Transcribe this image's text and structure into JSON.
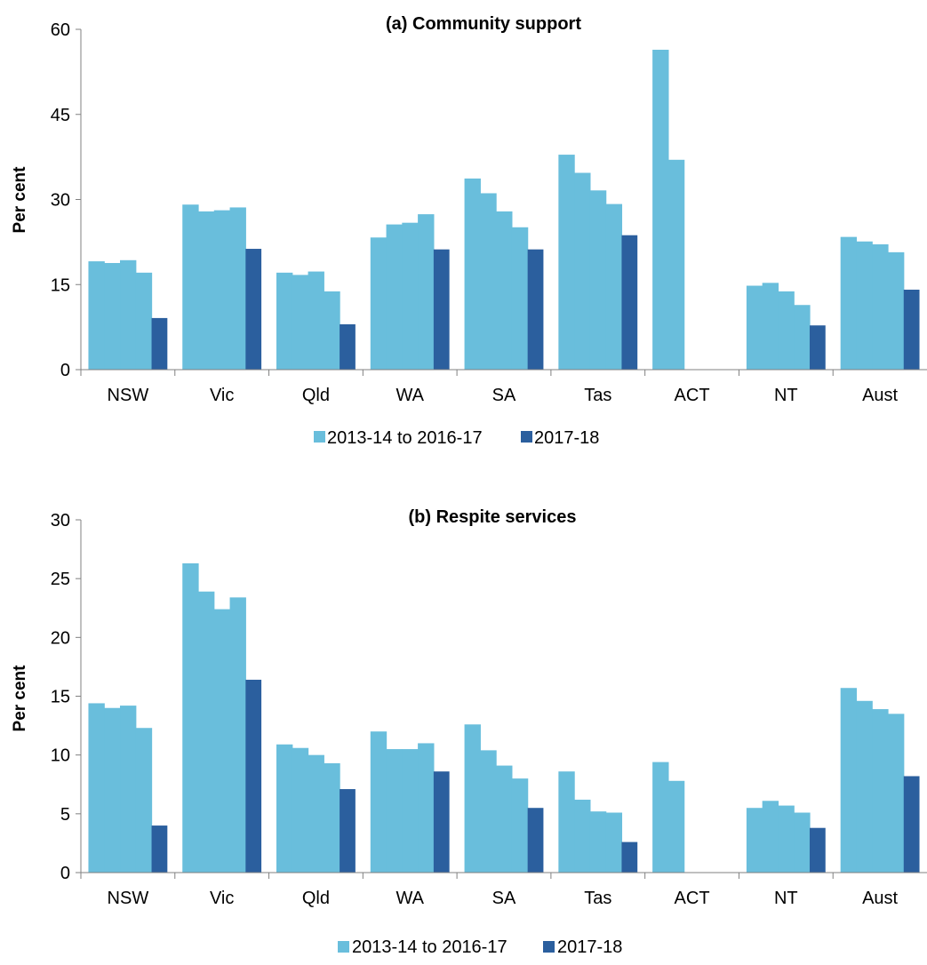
{
  "colors": {
    "period": "#69BEDC",
    "current": "#2B5F9E",
    "axis": "#808080",
    "text": "#000000"
  },
  "chart_data": [
    {
      "type": "bar",
      "title": "(a) Community support",
      "ylabel": "Per cent",
      "xlabel": "",
      "ylim": [
        0,
        60
      ],
      "yticks": [
        0,
        15,
        30,
        45,
        60
      ],
      "categories": [
        "NSW",
        "Vic",
        "Qld",
        "WA",
        "SA",
        "Tas",
        "ACT",
        "NT",
        "Aust"
      ],
      "series": [
        {
          "name": "2013-14 to 2016-17",
          "color": "#69BEDC",
          "values": [
            [
              19.1,
              18.8,
              19.3,
              17.1
            ],
            [
              29.1,
              27.9,
              28.1,
              28.6
            ],
            [
              17.1,
              16.7,
              17.3,
              13.8
            ],
            [
              23.3,
              25.6,
              25.9,
              27.4
            ],
            [
              33.7,
              31.1,
              27.9,
              25.1
            ],
            [
              37.9,
              34.7,
              31.6,
              29.2
            ],
            [
              56.4,
              37.0,
              null,
              null
            ],
            [
              14.8,
              15.3,
              13.8,
              11.4
            ],
            [
              23.4,
              22.6,
              22.1,
              20.7
            ]
          ]
        },
        {
          "name": "2017-18",
          "color": "#2B5F9E",
          "values": [
            9.1,
            21.3,
            8.0,
            21.2,
            21.2,
            23.7,
            null,
            7.8,
            14.1
          ]
        }
      ],
      "legend": [
        "2013-14 to 2016-17",
        "2017-18"
      ],
      "legend_position": "bottom"
    },
    {
      "type": "bar",
      "title": "(b) Respite services",
      "ylabel": "Per cent",
      "xlabel": "",
      "ylim": [
        0,
        30
      ],
      "yticks": [
        0,
        5,
        10,
        15,
        20,
        25,
        30
      ],
      "categories": [
        "NSW",
        "Vic",
        "Qld",
        "WA",
        "SA",
        "Tas",
        "ACT",
        "NT",
        "Aust"
      ],
      "series": [
        {
          "name": "2013-14 to 2016-17",
          "color": "#69BEDC",
          "values": [
            [
              14.4,
              14.0,
              14.2,
              12.3
            ],
            [
              26.3,
              23.9,
              22.4,
              23.4
            ],
            [
              10.9,
              10.6,
              10.0,
              9.3
            ],
            [
              12.0,
              10.5,
              10.5,
              11.0
            ],
            [
              12.6,
              10.4,
              9.1,
              8.0
            ],
            [
              8.6,
              6.2,
              5.2,
              5.1
            ],
            [
              9.4,
              7.8,
              null,
              null
            ],
            [
              5.5,
              6.1,
              5.7,
              5.1
            ],
            [
              15.7,
              14.6,
              13.9,
              13.5
            ]
          ]
        },
        {
          "name": "2017-18",
          "color": "#2B5F9E",
          "values": [
            4.0,
            16.4,
            7.1,
            8.6,
            5.5,
            2.6,
            null,
            3.8,
            8.2
          ]
        }
      ],
      "legend": [
        "2013-14 to 2016-17",
        "2017-18"
      ],
      "legend_position": "bottom"
    }
  ]
}
